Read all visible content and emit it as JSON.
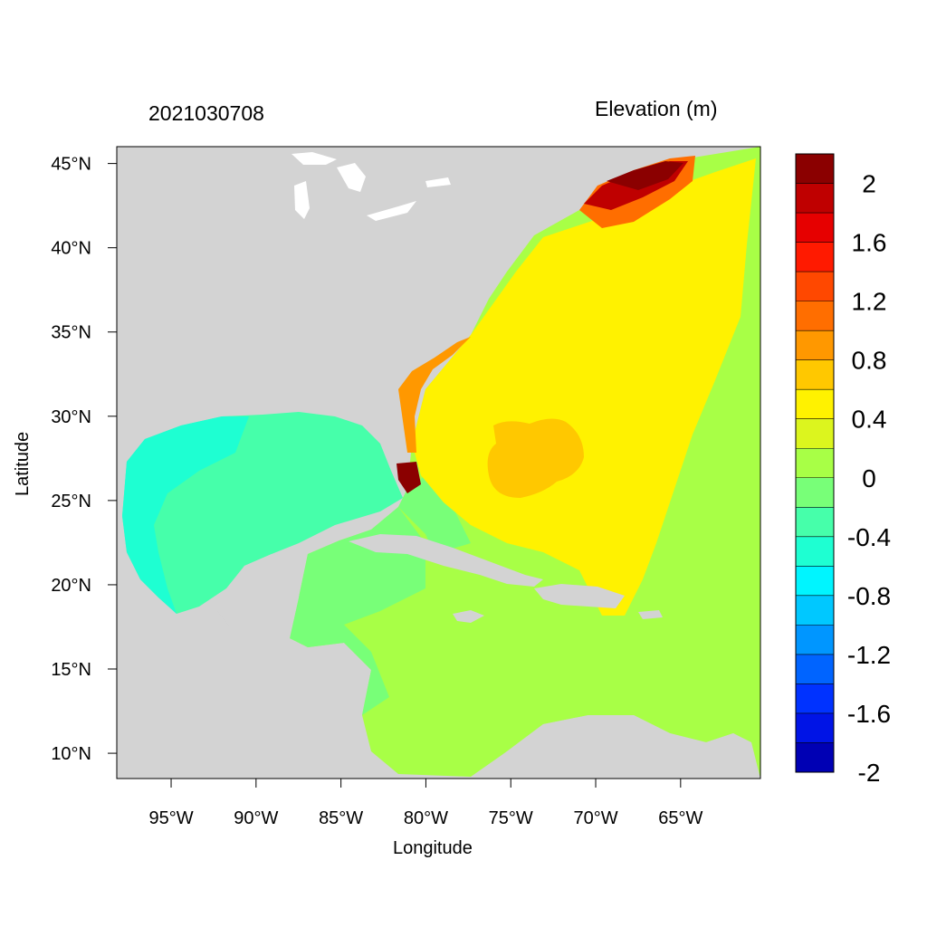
{
  "map": {
    "title_left": "2021030708",
    "title_right": "Elevation (m)",
    "xlabel": "Longitude",
    "ylabel": "Latitude",
    "lon_range": [
      -98.2,
      -60.3
    ],
    "lat_range": [
      8.5,
      46.0
    ],
    "x_ticks": [
      "95°W",
      "90°W",
      "85°W",
      "80°W",
      "75°W",
      "70°W",
      "65°W"
    ],
    "y_ticks": [
      "45°N",
      "40°N",
      "35°N",
      "30°N",
      "25°N",
      "20°N",
      "15°N",
      "10°N"
    ],
    "land_color": "#d3d3d3"
  },
  "colorbar": {
    "labels": [
      "2",
      "1.6",
      "1.2",
      "0.8",
      "0.4",
      "0",
      "-0.4",
      "-0.8",
      "-1.2",
      "-1.6",
      "-2"
    ],
    "colors": [
      "#8b0000",
      "#bf0000",
      "#e60000",
      "#ff1a00",
      "#ff4800",
      "#ff6e00",
      "#ff9800",
      "#ffc800",
      "#fff200",
      "#dcf51e",
      "#a8ff46",
      "#78ff78",
      "#46ffaa",
      "#1effd2",
      "#00f5ff",
      "#00c8ff",
      "#0096ff",
      "#0064ff",
      "#0032ff",
      "#0014e6",
      "#0000b4"
    ]
  }
}
